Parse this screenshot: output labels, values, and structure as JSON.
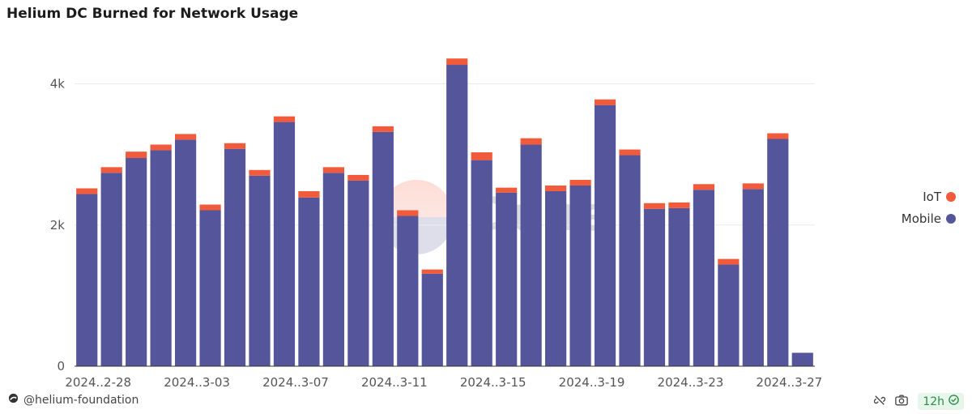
{
  "title": "Helium DC Burned for Network Usage",
  "watermark": "Dune",
  "footer": {
    "author": "@helium-foundation",
    "refresh": "12h"
  },
  "icons": {
    "author": "dune-logo-icon",
    "link": "unlink-icon",
    "camera": "camera-icon",
    "check": "check-circle-icon"
  },
  "chart_data": {
    "type": "bar",
    "stacked": true,
    "categories": [
      "2024-02-28",
      "2024-02-29",
      "2024-03-01",
      "2024-03-02",
      "2024-03-03",
      "2024-03-04",
      "2024-03-05",
      "2024-03-06",
      "2024-03-07",
      "2024-03-08",
      "2024-03-09",
      "2024-03-10",
      "2024-03-11",
      "2024-03-12",
      "2024-03-13",
      "2024-03-14",
      "2024-03-15",
      "2024-03-16",
      "2024-03-17",
      "2024-03-18",
      "2024-03-19",
      "2024-03-20",
      "2024-03-21",
      "2024-03-22",
      "2024-03-23",
      "2024-03-24",
      "2024-03-25",
      "2024-03-26",
      "2024-03-27",
      "2024-03-28"
    ],
    "x_tick_labels": [
      "2024..2-28",
      "2024..3-03",
      "2024..3-07",
      "2024..3-11",
      "2024..3-15",
      "2024..3-19",
      "2024..3-23",
      "2024..3-27"
    ],
    "x_tick_every": 4,
    "series": [
      {
        "name": "Mobile",
        "color": "#55559b",
        "values": [
          2440,
          2740,
          2950,
          3060,
          3210,
          2210,
          3080,
          2700,
          3460,
          2390,
          2740,
          2630,
          3320,
          2130,
          1310,
          4270,
          2920,
          2460,
          3140,
          2480,
          2560,
          3700,
          2990,
          2230,
          2240,
          2500,
          1440,
          2510,
          3220,
          190
        ]
      },
      {
        "name": "IoT",
        "color": "#f15a3a",
        "values": [
          80,
          80,
          90,
          80,
          80,
          80,
          80,
          80,
          80,
          90,
          80,
          80,
          80,
          80,
          60,
          90,
          110,
          70,
          90,
          80,
          80,
          80,
          80,
          80,
          80,
          80,
          80,
          80,
          80,
          0
        ]
      }
    ],
    "yticks": [
      0,
      2000,
      4000
    ],
    "ytick_labels": [
      "0",
      "2k",
      "4k"
    ],
    "ylim": [
      0,
      4500
    ],
    "xlabel": "",
    "ylabel": "",
    "grid": true,
    "legend": "right"
  }
}
